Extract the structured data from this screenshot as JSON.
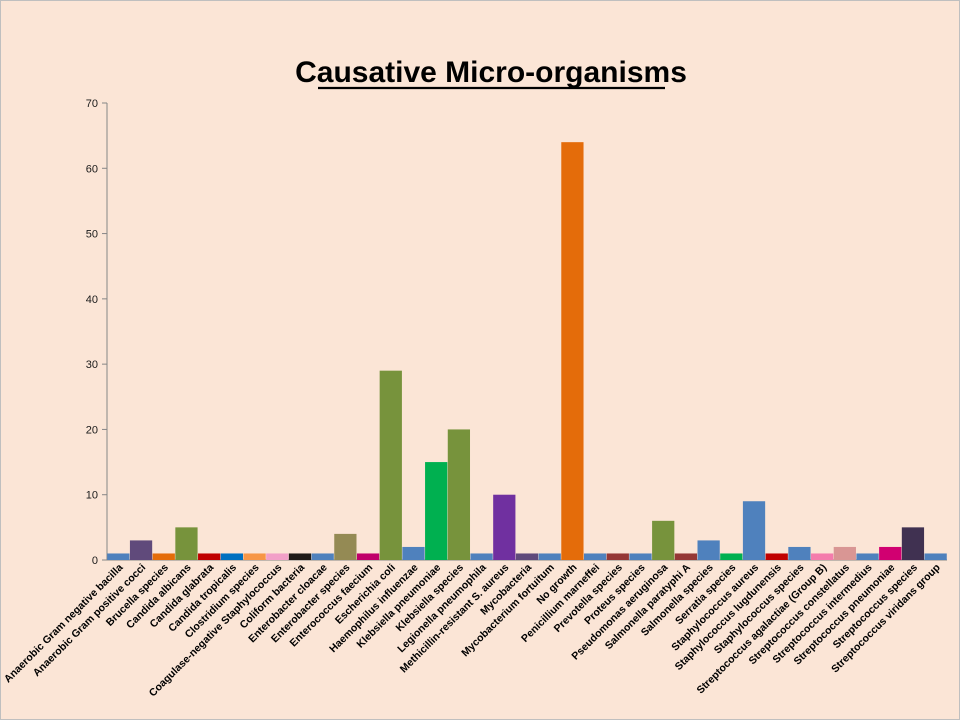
{
  "chart_data": {
    "type": "bar",
    "title": "Causative Micro-organisms",
    "xlabel": "",
    "ylabel": "",
    "ylim": [
      0,
      70
    ],
    "yticks": [
      0,
      10,
      20,
      30,
      40,
      50,
      60,
      70
    ],
    "grid": false,
    "legend": "none",
    "categories": [
      "Anaerobic Gram negative bacilla",
      "Anaerobic Gram positive cocci",
      "Brucella species",
      "Candida albicans",
      "Candida glabrata",
      "Candida tropicalis",
      "Clostridium species",
      "Coagulase-negative Staphylococcus",
      "Coliform bacteria",
      "Enterobacter cloacae",
      "Enterobacter species",
      "Enterococcus faecium",
      "Escherichia coli",
      "Haemophilus influenzae",
      "Klebsiella pneumoniae",
      "Klebsiella species",
      "Legionella pneumophila",
      "Methicillin-resistant S. aureus",
      "Mycobacteria",
      "Mycobacterium fortuitum",
      "No growth",
      "Penicillium marneffei",
      "Prevotella species",
      "Proteus species",
      "Pseudomonas aeruginosa",
      "Salmonella paratyphi A",
      "Salmonella species",
      "Serratia species",
      "Staphylococcus aureus",
      "Staphylococcus lugdunensis",
      "Staphylococcus species",
      "Streptococcus agalactiae (Group B)",
      "Streptococcus constellatus",
      "Streptococcus intermedius",
      "Streptococcus pneumoniae",
      "Streptococcus species",
      "Streptococcus viridans group"
    ],
    "values": [
      1,
      3,
      1,
      5,
      1,
      1,
      1,
      1,
      1,
      1,
      4,
      1,
      29,
      2,
      15,
      20,
      1,
      10,
      1,
      1,
      64,
      1,
      1,
      1,
      6,
      1,
      3,
      1,
      9,
      1,
      2,
      1,
      2,
      1,
      2,
      5,
      1
    ],
    "colors": [
      "#4f81bd",
      "#604a7b",
      "#e46c0a",
      "#77933c",
      "#c00000",
      "#0070c0",
      "#f79646",
      "#f2a0c8",
      "#1f1a17",
      "#4f81bd",
      "#948a54",
      "#c0006a",
      "#77933c",
      "#4f81bd",
      "#00b050",
      "#77933c",
      "#4f81bd",
      "#7030a0",
      "#604a7b",
      "#4f81bd",
      "#e46c0a",
      "#4f81bd",
      "#953735",
      "#4f81bd",
      "#77933c",
      "#953735",
      "#4f81bd",
      "#00b050",
      "#4f81bd",
      "#c00000",
      "#4f81bd",
      "#f47cac",
      "#d99694",
      "#4f81bd",
      "#d10071",
      "#403151",
      "#4f81bd"
    ]
  }
}
